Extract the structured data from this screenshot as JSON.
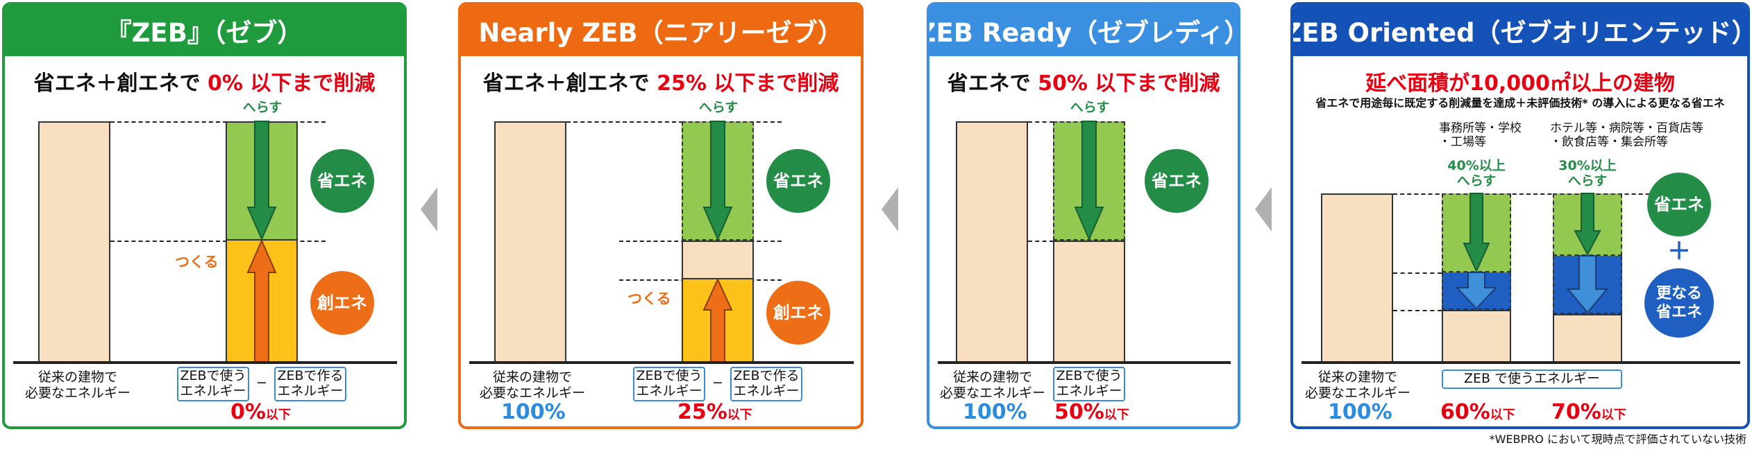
{
  "colors": {
    "zeb": "#1f9a3c",
    "nearly": "#ee6a12",
    "ready": "#3a8fe0",
    "oriented": "#1552b7",
    "reduce": "#238d47",
    "create": "#ee6e17",
    "highlight": "#e60012"
  },
  "panels": [
    {
      "title": "『ZEB』（ゼブ）",
      "subtitle_pre": "省エネ＋創エネで ",
      "subtitle_hl": "0% 以下まで削減",
      "reduce_label": "へらす",
      "create_label": "つくる",
      "circle_save": "省エネ",
      "circle_create": "創エネ",
      "base_label": "従来の建物で\n必要なエネルギー",
      "box_use": "ZEBで使う\nエネルギー",
      "minus": "−",
      "box_make": "ZEBで作る\nエネルギー",
      "pct_value": "0%",
      "pct_suffix": "以下"
    },
    {
      "title": "Nearly ZEB（ニアリーゼブ）",
      "subtitle_pre": "省エネ＋創エネで ",
      "subtitle_hl": "25% 以下まで削減",
      "reduce_label": "へらす",
      "create_label": "つくる",
      "circle_save": "省エネ",
      "circle_create": "創エネ",
      "base_label": "従来の建物で\n必要なエネルギー",
      "base_pct": "100%",
      "box_use": "ZEBで使う\nエネルギー",
      "minus": "−",
      "box_make": "ZEBで作る\nエネルギー",
      "pct_value": "25%",
      "pct_suffix": "以下"
    },
    {
      "title": "ZEB Ready（ゼブレディ）",
      "subtitle_pre": "省エネで ",
      "subtitle_hl": "50% 以下まで削減",
      "reduce_label": "へらす",
      "circle_save": "省エネ",
      "base_label": "従来の建物で\n必要なエネルギー",
      "base_pct": "100%",
      "box_use": "ZEBで使う\nエネルギー",
      "pct_value": "50%",
      "pct_suffix": "以下"
    },
    {
      "title": "ZEB Oriented（ゼブオリエンテッド）",
      "subtitle_hl": "延べ面積が10,000㎡以上の建物",
      "note": "省エネで用途毎に既定する削減量を達成＋未評価技術* の導入による更なる省エネ",
      "cat1": "事務所等・学校\n・工場等",
      "cat2": "ホテル等・病院等・百貨店等\n・飲食店等・集会所等",
      "red1": "40%以上\nへらす",
      "red2": "30%以上\nへらす",
      "circle_save": "省エネ",
      "plus": "＋",
      "circle_more": "更なる\n省エネ",
      "base_label": "従来の建物で\n必要なエネルギー",
      "base_pct": "100%",
      "box_use": "ZEB で使うエネルギー",
      "pct1": "60%",
      "pct2": "70%",
      "pct_suffix": "以下"
    }
  ],
  "footnote": "*WEBPRO において現時点で評価されていない技術"
}
